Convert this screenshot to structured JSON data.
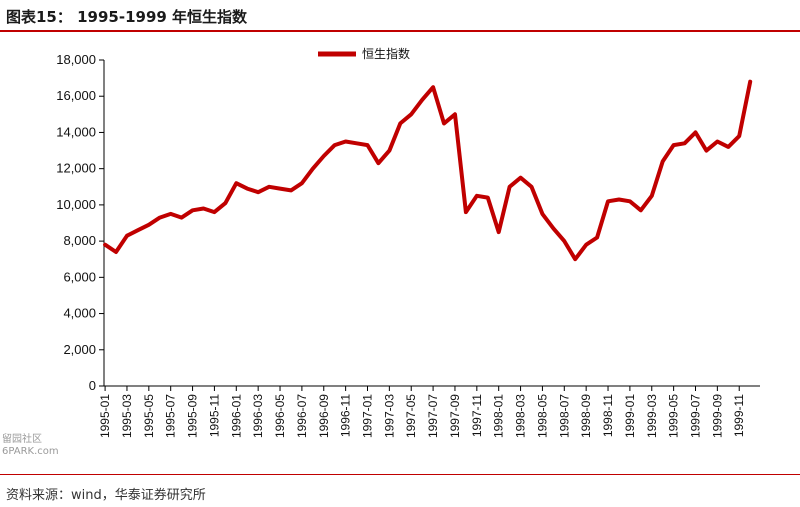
{
  "header": {
    "title": "图表15：  1995-1999 年恒生指数"
  },
  "footer": {
    "source": "资料来源：wind，华泰证券研究所"
  },
  "watermark": {
    "line1": "留园社区",
    "line2": "6PARK.com"
  },
  "colors": {
    "series": "#c00000",
    "rule": "#c00000"
  },
  "chart_data": {
    "type": "line",
    "title": "",
    "xlabel": "",
    "ylabel": "",
    "ylim": [
      0,
      18000
    ],
    "grid": false,
    "legend": "top-center",
    "y_ticks": [
      "0",
      "2,000",
      "4,000",
      "6,000",
      "8,000",
      "10,000",
      "12,000",
      "14,000",
      "16,000",
      "18,000"
    ],
    "x_ticks": [
      "1995-01",
      "1995-03",
      "1995-05",
      "1995-07",
      "1995-09",
      "1995-11",
      "1996-01",
      "1996-03",
      "1996-05",
      "1996-07",
      "1996-09",
      "1996-11",
      "1997-01",
      "1997-03",
      "1997-05",
      "1997-07",
      "1997-09",
      "1997-11",
      "1998-01",
      "1998-03",
      "1998-05",
      "1998-07",
      "1998-09",
      "1998-11",
      "1999-01",
      "1999-03",
      "1999-05",
      "1999-07",
      "1999-09",
      "1999-11"
    ],
    "series": [
      {
        "name": "恒生指数",
        "x": [
          "1995-01",
          "1995-02",
          "1995-03",
          "1995-04",
          "1995-05",
          "1995-06",
          "1995-07",
          "1995-08",
          "1995-09",
          "1995-10",
          "1995-11",
          "1995-12",
          "1996-01",
          "1996-02",
          "1996-03",
          "1996-04",
          "1996-05",
          "1996-06",
          "1996-07",
          "1996-08",
          "1996-09",
          "1996-10",
          "1996-11",
          "1996-12",
          "1997-01",
          "1997-02",
          "1997-03",
          "1997-04",
          "1997-05",
          "1997-06",
          "1997-07",
          "1997-08",
          "1997-09",
          "1997-10",
          "1997-11",
          "1997-12",
          "1998-01",
          "1998-02",
          "1998-03",
          "1998-04",
          "1998-05",
          "1998-06",
          "1998-07",
          "1998-08",
          "1998-09",
          "1998-10",
          "1998-11",
          "1998-12",
          "1999-01",
          "1999-02",
          "1999-03",
          "1999-04",
          "1999-05",
          "1999-06",
          "1999-07",
          "1999-08",
          "1999-09",
          "1999-10",
          "1999-11",
          "1999-12"
        ],
        "values": [
          7800,
          7400,
          8300,
          8600,
          8900,
          9300,
          9500,
          9300,
          9700,
          9800,
          9600,
          10100,
          11200,
          10900,
          10700,
          11000,
          10900,
          10800,
          11200,
          12000,
          12700,
          13300,
          13500,
          13400,
          13300,
          12300,
          13000,
          14500,
          15000,
          15800,
          16500,
          14500,
          15000,
          9600,
          10500,
          10400,
          8500,
          11000,
          11500,
          11000,
          9500,
          8700,
          8000,
          7000,
          7800,
          8200,
          10200,
          10300,
          10200,
          9700,
          10500,
          12400,
          13300,
          13400,
          14000,
          13000,
          13500,
          13200,
          13800,
          16800
        ]
      }
    ]
  }
}
